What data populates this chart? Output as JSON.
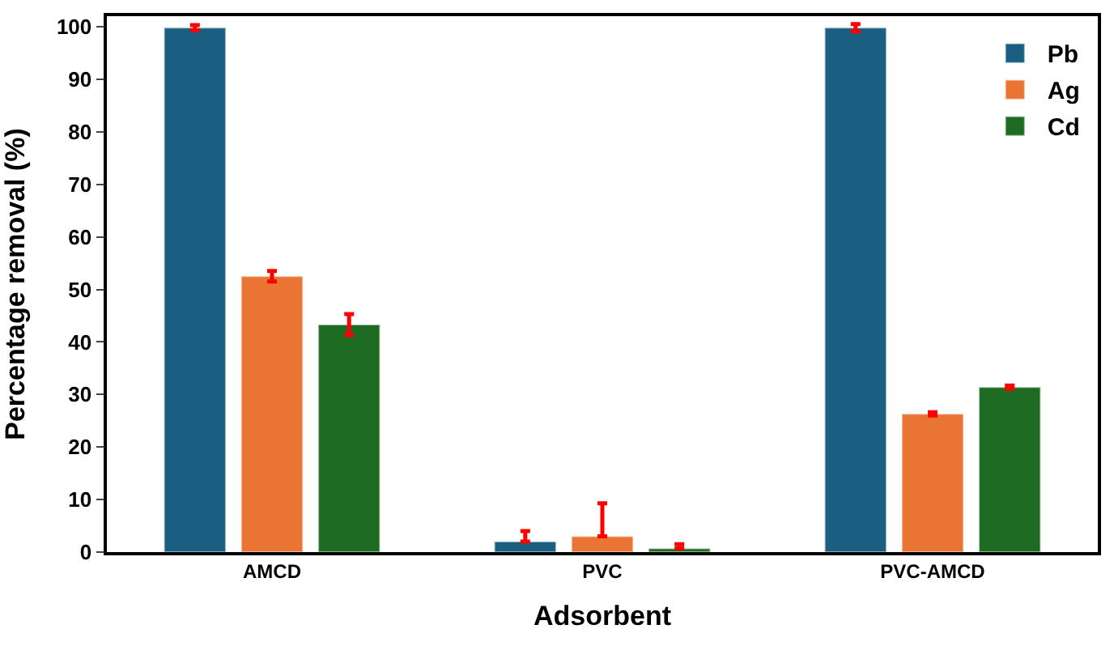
{
  "chart_data": {
    "type": "bar",
    "xlabel": "Adsorbent",
    "ylabel": "Percentage removal (%)",
    "categories": [
      "AMCD",
      "PVC",
      "PVC-AMCD"
    ],
    "series": [
      {
        "name": "Pb",
        "color": "#1a5e82",
        "values": [
          99.8,
          2.0,
          99.8
        ],
        "errors": [
          0.5,
          [
            2.0,
            4.0
          ],
          0.7
        ]
      },
      {
        "name": "Ag",
        "color": "#ea7433",
        "values": [
          52.5,
          3.0,
          26.3
        ],
        "errors": [
          1.0,
          [
            3.0,
            9.3
          ],
          0.3
        ]
      },
      {
        "name": "Cd",
        "color": "#1e6b24",
        "values": [
          43.3,
          0.7,
          31.4
        ],
        "errors": [
          2.0,
          [
            0.7,
            1.5
          ],
          0.3
        ]
      }
    ],
    "ylim": [
      0,
      102
    ],
    "yticks": [
      0,
      10,
      20,
      30,
      40,
      50,
      60,
      70,
      80,
      90,
      100
    ],
    "legend": "top right"
  }
}
